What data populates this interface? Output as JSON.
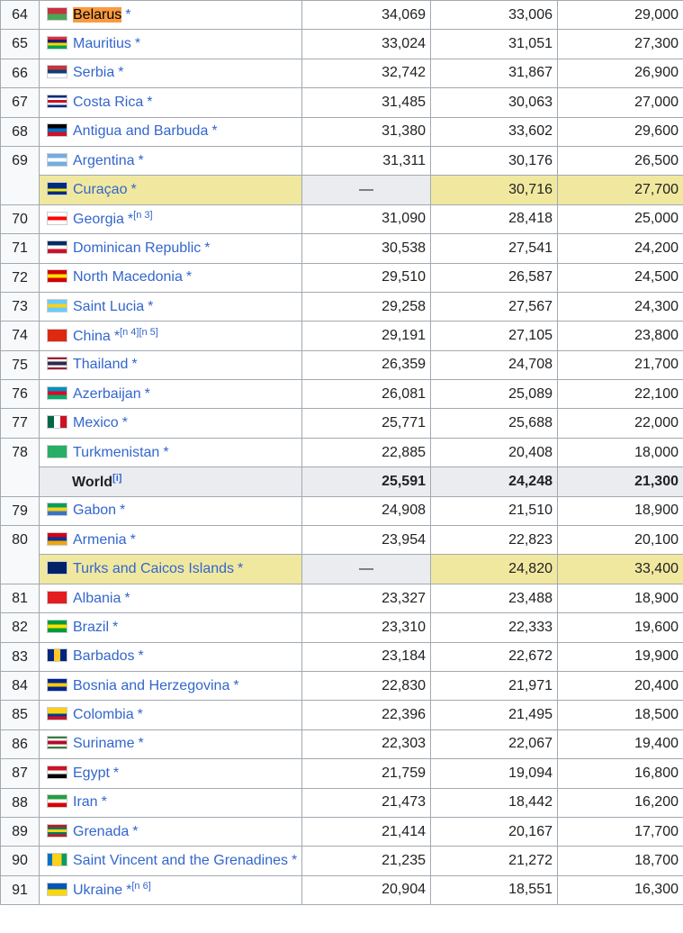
{
  "rows": [
    {
      "rank": "64",
      "name": "Belarus",
      "star": "*",
      "v1": "34,069",
      "v2": "33,006",
      "v3": "29,000",
      "flag": [
        "#c8313e",
        "#4aa657"
      ],
      "highlight_name": true
    },
    {
      "rank": "65",
      "name": "Mauritius",
      "star": "*",
      "v1": "33,024",
      "v2": "31,051",
      "v3": "27,300",
      "flag": [
        "#ea2839",
        "#1a206d",
        "#ffd500",
        "#00a551"
      ]
    },
    {
      "rank": "66",
      "name": "Serbia",
      "star": "*",
      "v1": "32,742",
      "v2": "31,867",
      "v3": "26,900",
      "flag": [
        "#c6363c",
        "#0c4076",
        "#ffffff"
      ]
    },
    {
      "rank": "67",
      "name": "Costa Rica",
      "star": "*",
      "v1": "31,485",
      "v2": "30,063",
      "v3": "27,000",
      "flag": [
        "#002b7f",
        "#ffffff",
        "#ce1126",
        "#ffffff",
        "#002b7f"
      ]
    },
    {
      "rank": "68",
      "name": "Antigua and Barbuda",
      "star": "*",
      "v1": "31,380",
      "v2": "33,602",
      "v3": "29,600",
      "flag": [
        "#000000",
        "#0072c6",
        "#ce1126"
      ]
    },
    {
      "rank": "69",
      "rowspan": 2,
      "name": "Argentina",
      "star": "*",
      "v1": "31,311",
      "v2": "30,176",
      "v3": "26,500",
      "flag": [
        "#74acdf",
        "#ffffff",
        "#74acdf"
      ]
    },
    {
      "terr": true,
      "name": "Curaçao",
      "star": "*",
      "v1": "—",
      "v2": "30,716",
      "v3": "27,700",
      "flag": [
        "#002b7f",
        "#002b7f",
        "#f9e814",
        "#002b7f"
      ]
    },
    {
      "rank": "70",
      "name": "Georgia",
      "star": "*",
      "sup": "[n 3]",
      "v1": "31,090",
      "v2": "28,418",
      "v3": "25,000",
      "flag": [
        "#ffffff",
        "#ff0000",
        "#ffffff"
      ]
    },
    {
      "rank": "71",
      "name": "Dominican Republic",
      "star": "*",
      "v1": "30,538",
      "v2": "27,541",
      "v3": "24,200",
      "flag": [
        "#002d62",
        "#ffffff",
        "#ce1126"
      ]
    },
    {
      "rank": "72",
      "name": "North Macedonia",
      "star": "*",
      "v1": "29,510",
      "v2": "26,587",
      "v3": "24,500",
      "flag": [
        "#d20000",
        "#ffe600",
        "#d20000"
      ]
    },
    {
      "rank": "73",
      "name": "Saint Lucia",
      "star": "*",
      "v1": "29,258",
      "v2": "27,567",
      "v3": "24,300",
      "flag": [
        "#66ccff",
        "#fcd116",
        "#66ccff"
      ]
    },
    {
      "rank": "74",
      "name": "China",
      "star": "*",
      "sup": "[n 4][n 5]",
      "v1": "29,191",
      "v2": "27,105",
      "v3": "23,800",
      "flag": [
        "#de2910",
        "#de2910"
      ]
    },
    {
      "rank": "75",
      "name": "Thailand",
      "star": "*",
      "v1": "26,359",
      "v2": "24,708",
      "v3": "21,700",
      "flag": [
        "#a51931",
        "#f4f5f8",
        "#2d2a4a",
        "#2d2a4a",
        "#f4f5f8",
        "#a51931"
      ]
    },
    {
      "rank": "76",
      "name": "Azerbaijan",
      "star": "*",
      "v1": "26,081",
      "v2": "25,089",
      "v3": "22,100",
      "flag": [
        "#0092bc",
        "#e4002b",
        "#00af66"
      ]
    },
    {
      "rank": "77",
      "name": "Mexico",
      "star": "*",
      "v1": "25,771",
      "v2": "25,688",
      "v3": "22,000",
      "flag": [
        "#006847",
        "#ffffff",
        "#ce1126"
      ],
      "vertical": true
    },
    {
      "rank": "78",
      "rowspan": 2,
      "name": "Turkmenistan",
      "star": "*",
      "v1": "22,885",
      "v2": "20,408",
      "v3": "18,000",
      "flag": [
        "#28ae66",
        "#28ae66"
      ]
    },
    {
      "world": true,
      "name": "World",
      "sup": "[i]",
      "v1": "25,591",
      "v2": "24,248",
      "v3": "21,300"
    },
    {
      "rank": "79",
      "name": "Gabon",
      "star": "*",
      "v1": "24,908",
      "v2": "21,510",
      "v3": "18,900",
      "flag": [
        "#009e60",
        "#fcd116",
        "#3a75c4"
      ]
    },
    {
      "rank": "80",
      "rowspan": 2,
      "name": "Armenia",
      "star": "*",
      "v1": "23,954",
      "v2": "22,823",
      "v3": "20,100",
      "flag": [
        "#d90012",
        "#0033a0",
        "#f2a800"
      ]
    },
    {
      "terr": true,
      "name": "Turks and Caicos Islands",
      "star": "*",
      "v1": "—",
      "v2": "24,820",
      "v3": "33,400",
      "flag": [
        "#012169",
        "#012169"
      ]
    },
    {
      "rank": "81",
      "name": "Albania",
      "star": "*",
      "v1": "23,327",
      "v2": "23,488",
      "v3": "18,900",
      "flag": [
        "#e41e20",
        "#e41e20"
      ]
    },
    {
      "rank": "82",
      "name": "Brazil",
      "star": "*",
      "v1": "23,310",
      "v2": "22,333",
      "v3": "19,600",
      "flag": [
        "#009c3b",
        "#ffdf00",
        "#009c3b"
      ]
    },
    {
      "rank": "83",
      "name": "Barbados",
      "star": "*",
      "v1": "23,184",
      "v2": "22,672",
      "v3": "19,900",
      "flag": [
        "#00267f",
        "#ffc726",
        "#00267f"
      ],
      "vertical": true
    },
    {
      "rank": "84",
      "name": "Bosnia and Herzegovina",
      "star": "*",
      "v1": "22,830",
      "v2": "21,971",
      "v3": "20,400",
      "flag": [
        "#002395",
        "#fecb00",
        "#002395"
      ]
    },
    {
      "rank": "85",
      "name": "Colombia",
      "star": "*",
      "v1": "22,396",
      "v2": "21,495",
      "v3": "18,500",
      "flag": [
        "#fcd116",
        "#fcd116",
        "#003893",
        "#ce1126"
      ]
    },
    {
      "rank": "86",
      "name": "Suriname",
      "star": "*",
      "v1": "22,303",
      "v2": "22,067",
      "v3": "19,400",
      "flag": [
        "#377e3f",
        "#ffffff",
        "#b40a2d",
        "#b40a2d",
        "#ffffff",
        "#377e3f"
      ]
    },
    {
      "rank": "87",
      "name": "Egypt",
      "star": "*",
      "v1": "21,759",
      "v2": "19,094",
      "v3": "16,800",
      "flag": [
        "#ce1126",
        "#ffffff",
        "#000000"
      ]
    },
    {
      "rank": "88",
      "name": "Iran",
      "star": "*",
      "v1": "21,473",
      "v2": "18,442",
      "v3": "16,200",
      "flag": [
        "#239f40",
        "#ffffff",
        "#da0000"
      ]
    },
    {
      "rank": "89",
      "name": "Grenada",
      "star": "*",
      "v1": "21,414",
      "v2": "20,167",
      "v3": "17,700",
      "flag": [
        "#ce1126",
        "#007a5e",
        "#fcd116",
        "#007a5e",
        "#ce1126"
      ]
    },
    {
      "rank": "90",
      "name": "Saint Vincent and the Grenadines",
      "star": "*",
      "v1": "21,235",
      "v2": "21,272",
      "v3": "18,700",
      "flag": [
        "#0072c6",
        "#fcd116",
        "#fcd116",
        "#009e60"
      ],
      "vertical": true
    },
    {
      "rank": "91",
      "name": "Ukraine",
      "star": "*",
      "sup": "[n 6]",
      "v1": "20,904",
      "v2": "18,551",
      "v3": "16,300",
      "flag": [
        "#0057b7",
        "#ffd700"
      ]
    }
  ]
}
